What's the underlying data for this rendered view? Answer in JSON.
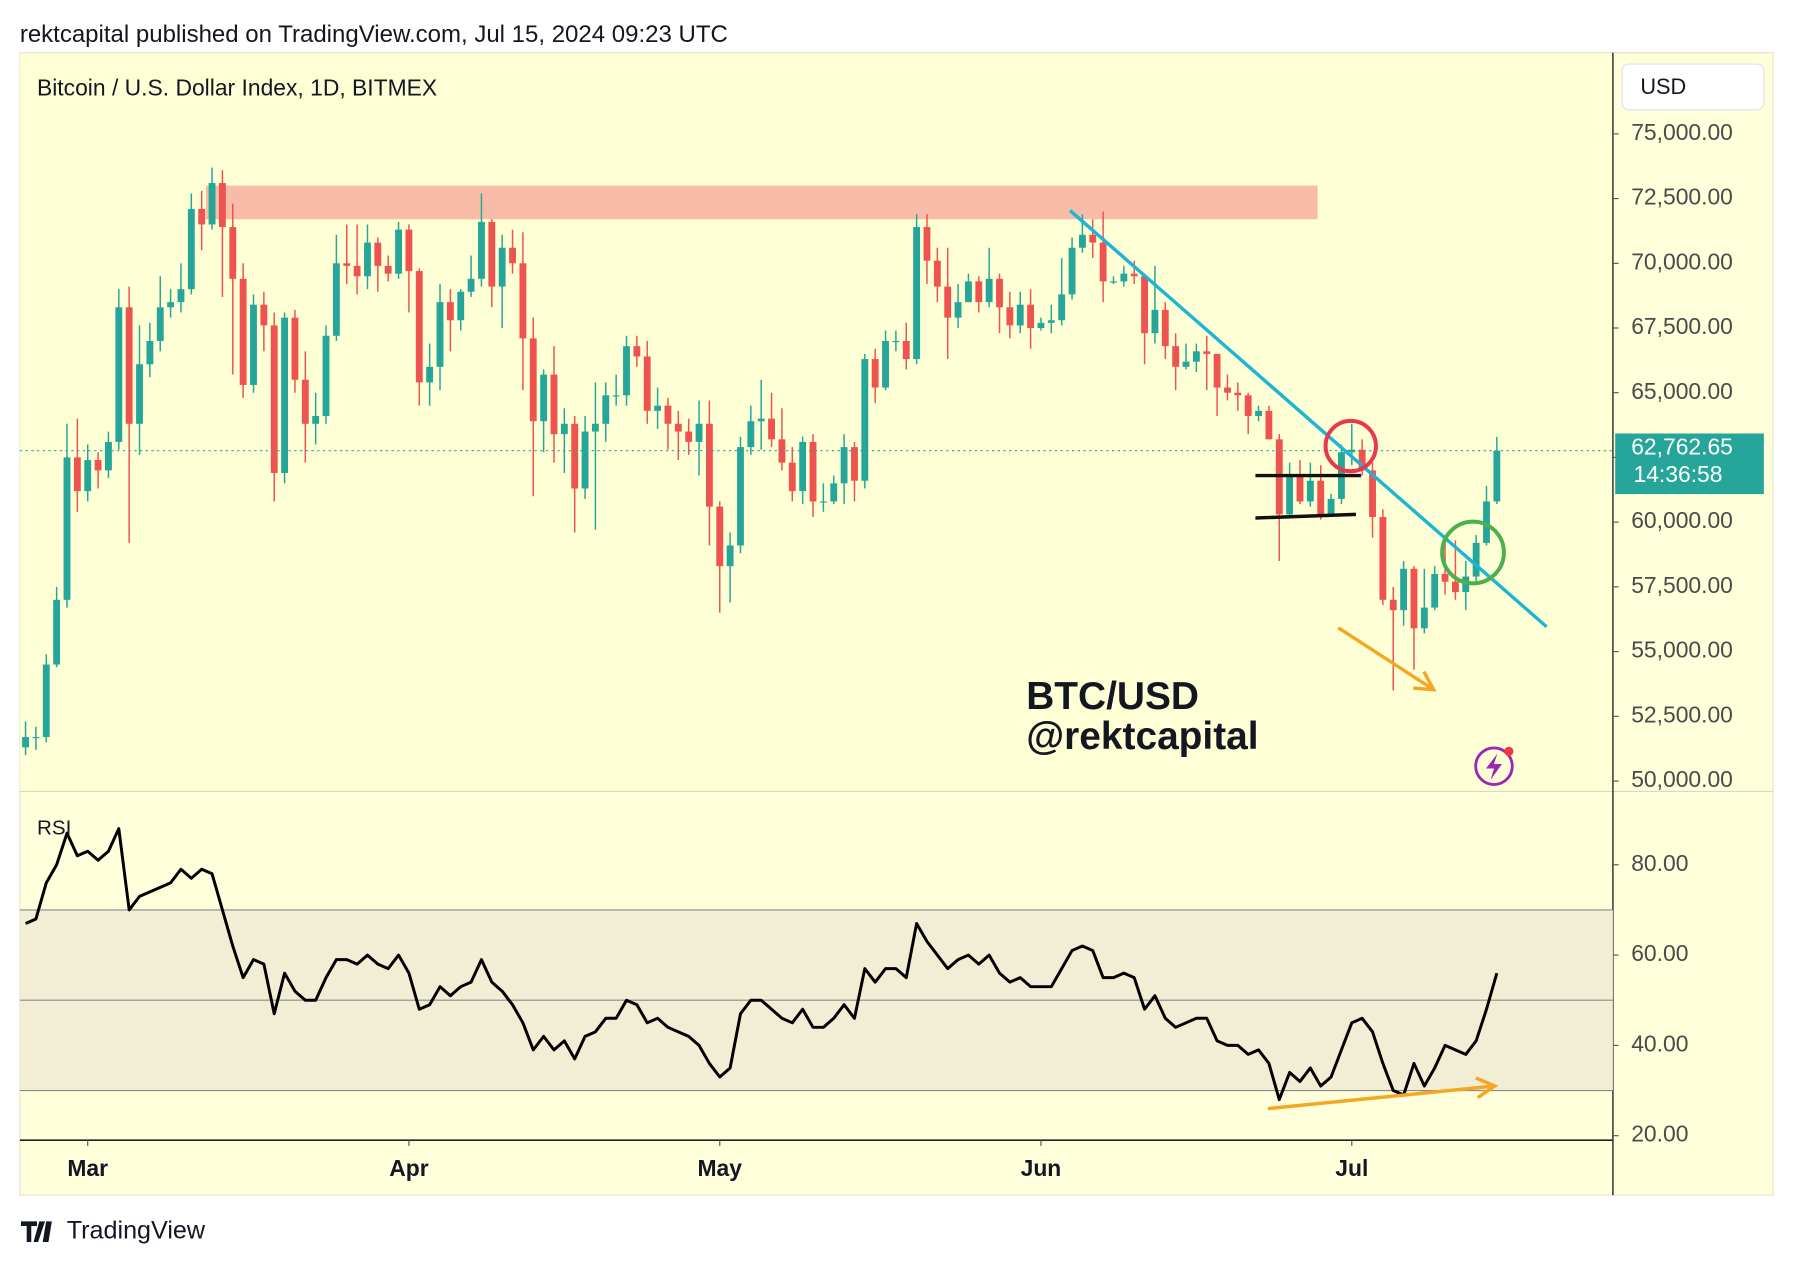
{
  "header": "rektcapital published on TradingView.com, Jul 15, 2024 09:23 UTC",
  "footer": "TradingView",
  "chart_data": {
    "type": "candlestick",
    "title": "Bitcoin / U.S. Dollar Index, 1D, BITMEX",
    "currency": "USD",
    "annotations": [
      "BTC/USD",
      "@rektcapital"
    ],
    "up_color": "#26a69a",
    "down_color": "#ef5350",
    "ylim": [
      49600,
      78050
    ],
    "yticks": [
      {
        "value": 50000,
        "label": "50,000.00"
      },
      {
        "value": 52500,
        "label": "52,500.00"
      },
      {
        "value": 55000,
        "label": "55,000.00"
      },
      {
        "value": 57500,
        "label": "57,500.00"
      },
      {
        "value": 60000,
        "label": "60,000.00"
      },
      {
        "value": 62500,
        "label": "62,500.00"
      },
      {
        "value": 65000,
        "label": "65,000.00"
      },
      {
        "value": 67500,
        "label": "67,500.00"
      },
      {
        "value": 70000,
        "label": "70,000.00"
      },
      {
        "value": 72500,
        "label": "72,500.00"
      },
      {
        "value": 75000,
        "label": "75,000.00"
      }
    ],
    "xticks": [
      {
        "value": 6,
        "label": "Mar"
      },
      {
        "value": 37,
        "label": "Apr"
      },
      {
        "value": 67,
        "label": "May"
      },
      {
        "value": 98,
        "label": "Jun"
      },
      {
        "value": 128,
        "label": "Jul"
      }
    ],
    "last_price": {
      "value": 62762.65,
      "label": "62,762.65"
    },
    "countdown": "14:36:58",
    "ohlc": [
      [
        51300,
        52300,
        51000,
        51700
      ],
      [
        51700,
        52100,
        51200,
        51700
      ],
      [
        51700,
        54900,
        51500,
        54500
      ],
      [
        54500,
        57500,
        54400,
        57000
      ],
      [
        57000,
        63800,
        56700,
        62500
      ],
      [
        62500,
        64000,
        60400,
        61200
      ],
      [
        61200,
        63000,
        60800,
        62400
      ],
      [
        62400,
        62700,
        61300,
        62000
      ],
      [
        62000,
        63500,
        61700,
        63100
      ],
      [
        63100,
        69000,
        62800,
        68300
      ],
      [
        68300,
        69100,
        59200,
        63800
      ],
      [
        63800,
        67600,
        62600,
        66100
      ],
      [
        66100,
        67700,
        65600,
        67000
      ],
      [
        67000,
        69500,
        66600,
        68300
      ],
      [
        68300,
        69000,
        67900,
        68500
      ],
      [
        68500,
        70000,
        68100,
        69000
      ],
      [
        69000,
        72700,
        68800,
        72100
      ],
      [
        72100,
        72800,
        70500,
        71500
      ],
      [
        71500,
        73700,
        71300,
        73100
      ],
      [
        73100,
        73600,
        68700,
        71400
      ],
      [
        71400,
        72300,
        65700,
        69400
      ],
      [
        69400,
        70000,
        64800,
        65300
      ],
      [
        65300,
        68800,
        65000,
        68400
      ],
      [
        68400,
        68900,
        66600,
        67600
      ],
      [
        67600,
        68100,
        60800,
        61900
      ],
      [
        61900,
        68100,
        61500,
        67900
      ],
      [
        67900,
        68200,
        65000,
        65500
      ],
      [
        65500,
        66600,
        62300,
        63800
      ],
      [
        63800,
        65000,
        63000,
        64100
      ],
      [
        64100,
        67600,
        63800,
        67200
      ],
      [
        67200,
        71100,
        67000,
        70000
      ],
      [
        70000,
        71500,
        69200,
        69900
      ],
      [
        69900,
        71500,
        68800,
        69500
      ],
      [
        69500,
        71500,
        69000,
        70800
      ],
      [
        70800,
        71000,
        68900,
        69900
      ],
      [
        69900,
        70300,
        69300,
        69600
      ],
      [
        69600,
        71600,
        69400,
        71300
      ],
      [
        71300,
        71500,
        68100,
        69700
      ],
      [
        69700,
        69800,
        64500,
        65400
      ],
      [
        65400,
        66900,
        64500,
        66000
      ],
      [
        66000,
        69200,
        65100,
        68500
      ],
      [
        68500,
        69000,
        66600,
        67800
      ],
      [
        67800,
        69000,
        67400,
        68900
      ],
      [
        68900,
        70300,
        68700,
        69400
      ],
      [
        69400,
        72700,
        69100,
        71600
      ],
      [
        71600,
        71700,
        68300,
        69100
      ],
      [
        69100,
        71100,
        67500,
        70600
      ],
      [
        70600,
        71300,
        69600,
        70000
      ],
      [
        70000,
        71200,
        65100,
        67100
      ],
      [
        67100,
        67900,
        61000,
        63900
      ],
      [
        63900,
        65900,
        62700,
        65700
      ],
      [
        65700,
        66800,
        62300,
        63400
      ],
      [
        63400,
        64400,
        61900,
        63800
      ],
      [
        63800,
        64100,
        59600,
        61300
      ],
      [
        61300,
        64100,
        60900,
        63500
      ],
      [
        63500,
        65400,
        59700,
        63800
      ],
      [
        63800,
        65400,
        63100,
        64900
      ],
      [
        64900,
        65700,
        64500,
        64900
      ],
      [
        64900,
        67200,
        64500,
        66800
      ],
      [
        66800,
        67200,
        66000,
        66400
      ],
      [
        66400,
        67000,
        63800,
        64300
      ],
      [
        64300,
        65200,
        63600,
        64500
      ],
      [
        64500,
        64800,
        62800,
        63800
      ],
      [
        63800,
        64300,
        62400,
        63500
      ],
      [
        63500,
        64000,
        62600,
        63100
      ],
      [
        63100,
        64700,
        61800,
        63800
      ],
      [
        63800,
        64700,
        59100,
        60600
      ],
      [
        60600,
        60800,
        56500,
        58300
      ],
      [
        58300,
        59600,
        56900,
        59100
      ],
      [
        59100,
        63300,
        58800,
        62900
      ],
      [
        62900,
        64500,
        62600,
        63900
      ],
      [
        63900,
        65500,
        62800,
        64000
      ],
      [
        64000,
        65000,
        62900,
        63200
      ],
      [
        63200,
        64400,
        62000,
        62300
      ],
      [
        62300,
        62900,
        60800,
        61200
      ],
      [
        61200,
        63300,
        60700,
        63100
      ],
      [
        63100,
        63400,
        60200,
        60800
      ],
      [
        60800,
        61500,
        60400,
        60800
      ],
      [
        60800,
        61800,
        60700,
        61500
      ],
      [
        61500,
        63400,
        60700,
        62900
      ],
      [
        62900,
        63100,
        60800,
        61600
      ],
      [
        61600,
        66500,
        61300,
        66300
      ],
      [
        66300,
        66700,
        64600,
        65200
      ],
      [
        65200,
        67400,
        65100,
        67000
      ],
      [
        67000,
        67400,
        66600,
        67000
      ],
      [
        67000,
        67700,
        65900,
        66300
      ],
      [
        66300,
        71900,
        66100,
        71400
      ],
      [
        71400,
        71900,
        69200,
        70100
      ],
      [
        70100,
        70600,
        68500,
        69100
      ],
      [
        69100,
        70600,
        66300,
        67900
      ],
      [
        67900,
        69200,
        67500,
        68500
      ],
      [
        68500,
        69600,
        68500,
        69300
      ],
      [
        69300,
        69500,
        68100,
        68500
      ],
      [
        68500,
        70600,
        68300,
        69400
      ],
      [
        69400,
        69600,
        67300,
        68300
      ],
      [
        68300,
        68900,
        67100,
        67600
      ],
      [
        67600,
        68900,
        67300,
        68400
      ],
      [
        68400,
        69000,
        66700,
        67500
      ],
      [
        67500,
        67900,
        67400,
        67700
      ],
      [
        67700,
        68400,
        67300,
        67800
      ],
      [
        67800,
        70200,
        67600,
        68800
      ],
      [
        68800,
        71000,
        68600,
        70600
      ],
      [
        70600,
        71900,
        70400,
        71100
      ],
      [
        71100,
        71700,
        70200,
        70800
      ],
      [
        70800,
        72000,
        68500,
        69300
      ],
      [
        69300,
        69500,
        69200,
        69300
      ],
      [
        69300,
        69900,
        69100,
        69600
      ],
      [
        69600,
        70100,
        69200,
        69500
      ],
      [
        69500,
        69600,
        66100,
        67300
      ],
      [
        67300,
        69900,
        66900,
        68200
      ],
      [
        68200,
        68500,
        66300,
        66800
      ],
      [
        66800,
        67300,
        65100,
        66000
      ],
      [
        66000,
        66900,
        65900,
        66200
      ],
      [
        66200,
        66900,
        65800,
        66600
      ],
      [
        66600,
        67200,
        65100,
        66500
      ],
      [
        66500,
        66500,
        64100,
        65200
      ],
      [
        65200,
        65700,
        64700,
        65000
      ],
      [
        65000,
        65400,
        64300,
        64900
      ],
      [
        64900,
        65000,
        63400,
        64100
      ],
      [
        64100,
        64500,
        63900,
        64300
      ],
      [
        64300,
        64500,
        63200,
        63200
      ],
      [
        63200,
        63400,
        58500,
        60300
      ],
      [
        60300,
        62300,
        60200,
        61800
      ],
      [
        61800,
        62400,
        60700,
        60800
      ],
      [
        60800,
        62300,
        60600,
        61600
      ],
      [
        61600,
        62200,
        60100,
        60300
      ],
      [
        60300,
        61100,
        60300,
        60900
      ],
      [
        60900,
        63000,
        60700,
        62700
      ],
      [
        62700,
        63800,
        62200,
        62800
      ],
      [
        62800,
        63200,
        61800,
        62000
      ],
      [
        62000,
        62300,
        59400,
        60200
      ],
      [
        60200,
        60500,
        56800,
        57000
      ],
      [
        57000,
        57500,
        53500,
        56600
      ],
      [
        56600,
        58500,
        56000,
        58200
      ],
      [
        58200,
        58300,
        54300,
        55900
      ],
      [
        55900,
        58200,
        55700,
        56700
      ],
      [
        56700,
        58300,
        56600,
        58000
      ],
      [
        58000,
        59400,
        57200,
        57700
      ],
      [
        57700,
        59300,
        57000,
        57300
      ],
      [
        57300,
        58500,
        56600,
        57900
      ],
      [
        57900,
        59500,
        57700,
        59200
      ],
      [
        59200,
        61400,
        59100,
        60800
      ],
      [
        60800,
        63300,
        60700,
        62762.65
      ]
    ],
    "rsi": {
      "name": "RSI",
      "color": "#000000",
      "ylim": [
        19,
        96.25
      ],
      "yticks": [
        {
          "value": 20,
          "label": "20.00"
        },
        {
          "value": 40,
          "label": "40.00"
        },
        {
          "value": 60,
          "label": "60.00"
        },
        {
          "value": 80,
          "label": "80.00"
        }
      ],
      "bands": [
        30,
        50,
        70
      ],
      "values": [
        67,
        68,
        76,
        80,
        87,
        82,
        83,
        81,
        83,
        88,
        70,
        73,
        74,
        75,
        76,
        79,
        77,
        79,
        78,
        70,
        62,
        55,
        59,
        58,
        47,
        56,
        52,
        50,
        50,
        55,
        59,
        59,
        58,
        60,
        58,
        57,
        60,
        56,
        48,
        49,
        53,
        51,
        53,
        54,
        59,
        54,
        52,
        49,
        45,
        39,
        42,
        39,
        41,
        37,
        42,
        43,
        46,
        46,
        50,
        49,
        45,
        46,
        44,
        43,
        42,
        40,
        36,
        33,
        35,
        47,
        50,
        50,
        48,
        46,
        45,
        48,
        44,
        44,
        46,
        49,
        46,
        57,
        54,
        57,
        57,
        55,
        67,
        63,
        60,
        57,
        59,
        60,
        58,
        60,
        56,
        54,
        55,
        53,
        53,
        53,
        57,
        61,
        62,
        61,
        55,
        55,
        56,
        55,
        48,
        51,
        46,
        44,
        45,
        46,
        46,
        41,
        40,
        40,
        38,
        39,
        36,
        28,
        34,
        32,
        35,
        31,
        33,
        39,
        45,
        46,
        43,
        36,
        30,
        29,
        36,
        31,
        35,
        40,
        39,
        38,
        41,
        48,
        56
      ]
    }
  }
}
